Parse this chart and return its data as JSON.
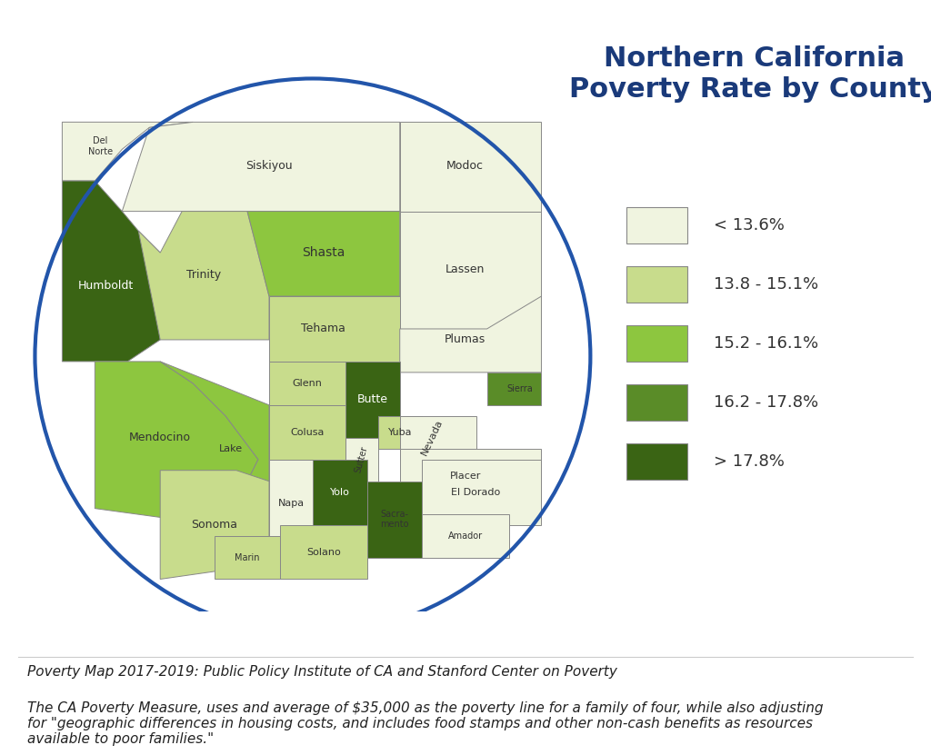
{
  "title": "Northern California\nPoverty Rate by County",
  "title_color": "#1a3a7a",
  "title_fontsize": 22,
  "circle_color": "#2255aa",
  "circle_linewidth": 3,
  "legend_categories": [
    "< 13.6%",
    "13.8 - 15.1%",
    "15.2 - 16.1%",
    "16.2 - 17.8%",
    "> 17.8%"
  ],
  "legend_colors": [
    "#f0f4e0",
    "#c8dc8c",
    "#8dc63f",
    "#5a8c28",
    "#3a6414"
  ],
  "footnote1": "Poverty Map 2017-2019: Public Policy Institute of CA and Stanford Center on Poverty",
  "footnote2": "The CA Poverty Measure, uses and average of $35,000 as the poverty line for a family of four, while also adjusting\nfor \"geographic differences in housing costs, and includes food stamps and other non-cash benefits as resources\navailable to poor families.\"",
  "footnote_fontsize": 11,
  "county_colors": {
    "Del Norte": "#f0f4e0",
    "Siskiyou": "#f0f4e0",
    "Modoc": "#f0f4e0",
    "Humboldt": "#3a6414",
    "Trinity": "#c8dc8c",
    "Shasta": "#8dc63f",
    "Lassen": "#f0f4e0",
    "Tehama": "#c8dc8c",
    "Plumas": "#f0f4e0",
    "Glenn": "#c8dc8c",
    "Butte": "#3a6414",
    "Sierra": "#5a8c28",
    "Mendocino": "#8dc63f",
    "Lake": "#8dc63f",
    "Colusa": "#c8dc8c",
    "Sutter": "#f0f4e0",
    "Yuba": "#c8dc8c",
    "Nevada": "#f0f4e0",
    "Placer": "#f0f4e0",
    "Sonoma": "#c8dc8c",
    "Napa": "#f0f4e0",
    "Yolo": "#3a6414",
    "Sacramento": "#3a6414",
    "El Dorado": "#f0f4e0",
    "Amador": "#f0f4e0",
    "Solano": "#c8dc8c",
    "Marin": "#c8dc8c"
  },
  "bg_color": "#ffffff",
  "border_color": "#888888",
  "border_linewidth": 0.7
}
